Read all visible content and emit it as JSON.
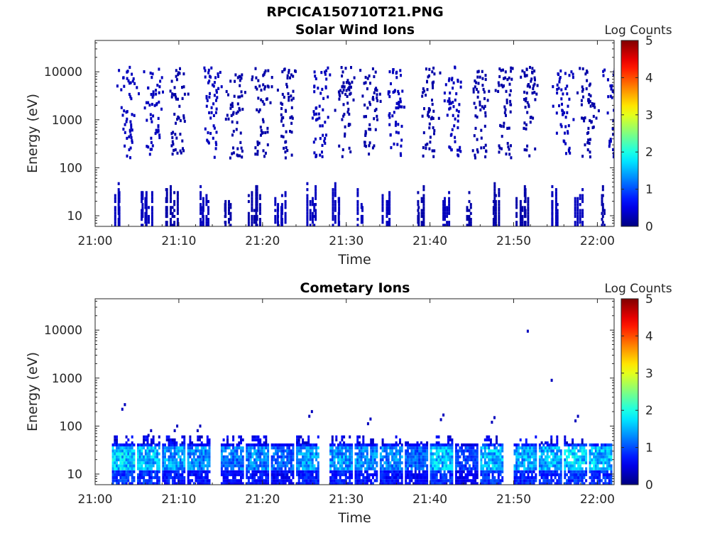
{
  "figure_title": "RPCICA150710T21.PNG",
  "chart_data": [
    {
      "type": "heatmap",
      "title": "Solar Wind Ions",
      "xlabel": "Time",
      "ylabel": "Energy (eV)",
      "x_ticks": [
        "21:00",
        "21:10",
        "21:20",
        "21:30",
        "21:40",
        "21:50",
        "22:00"
      ],
      "xlim": [
        "21:00",
        "22:02"
      ],
      "yscale": "log",
      "y_ticks": [
        "10",
        "100",
        "1000",
        "10000"
      ],
      "ylim": [
        6,
        45000
      ],
      "colorbar": {
        "label": "Log Counts",
        "range": [
          0,
          5
        ],
        "ticks": [
          "0",
          "1",
          "2",
          "3",
          "4",
          "5"
        ],
        "colormap": "jet"
      },
      "bursts": [
        {
          "t": "21:03",
          "low_energy_level": 0.3,
          "high_energy_level": 0.3
        },
        {
          "t": "21:06",
          "low_energy_level": 0.3,
          "high_energy_level": 0.3
        },
        {
          "t": "21:09",
          "low_energy_level": 0.2,
          "high_energy_level": 0.2
        },
        {
          "t": "21:13",
          "low_energy_level": 0.3,
          "high_energy_level": 0.3
        },
        {
          "t": "21:16",
          "low_energy_level": 0.2,
          "high_energy_level": 0.2
        },
        {
          "t": "21:19",
          "low_energy_level": 0.2,
          "high_energy_level": 0.2
        },
        {
          "t": "21:22",
          "low_energy_level": 0.3,
          "high_energy_level": 0.2
        },
        {
          "t": "21:26",
          "low_energy_level": 0.3,
          "high_energy_level": 0.3
        },
        {
          "t": "21:29",
          "low_energy_level": 0.3,
          "high_energy_level": 0.2
        },
        {
          "t": "21:32",
          "low_energy_level": 0.3,
          "high_energy_level": 0.2
        },
        {
          "t": "21:35",
          "low_energy_level": 0.3,
          "high_energy_level": 0.3
        },
        {
          "t": "21:39",
          "low_energy_level": 0.2,
          "high_energy_level": 0.2
        },
        {
          "t": "21:42",
          "low_energy_level": 0.3,
          "high_energy_level": 0.3
        },
        {
          "t": "21:45",
          "low_energy_level": 0.2,
          "high_energy_level": 0.2
        },
        {
          "t": "21:48",
          "low_energy_level": 0.2,
          "high_energy_level": 0.2
        },
        {
          "t": "21:51",
          "low_energy_level": 0.2,
          "high_energy_level": 0.2
        },
        {
          "t": "21:55",
          "low_energy_level": 0.3,
          "high_energy_level": 0.3
        },
        {
          "t": "21:58",
          "low_energy_level": 0.3,
          "high_energy_level": 0.2
        },
        {
          "t": "22:01",
          "low_energy_level": 0.2,
          "high_energy_level": 0.3
        }
      ]
    },
    {
      "type": "heatmap",
      "title": "Cometary Ions",
      "xlabel": "Time",
      "ylabel": "Energy (eV)",
      "x_ticks": [
        "21:00",
        "21:10",
        "21:20",
        "21:30",
        "21:40",
        "21:50",
        "22:00"
      ],
      "xlim": [
        "21:00",
        "22:02"
      ],
      "yscale": "log",
      "y_ticks": [
        "10",
        "100",
        "1000",
        "10000"
      ],
      "ylim": [
        6,
        45000
      ],
      "colorbar": {
        "label": "Log Counts",
        "range": [
          0,
          5
        ],
        "ticks": [
          "0",
          "1",
          "2",
          "3",
          "4",
          "5"
        ],
        "colormap": "jet"
      },
      "bursts": [
        {
          "t": "21:03",
          "peak_log_counts": 1.9,
          "max_energy_eV": 280
        },
        {
          "t": "21:06",
          "peak_log_counts": 1.8,
          "max_energy_eV": 80
        },
        {
          "t": "21:09",
          "peak_log_counts": 1.6,
          "max_energy_eV": 100
        },
        {
          "t": "21:12",
          "peak_log_counts": 1.5,
          "max_energy_eV": 100
        },
        {
          "t": "21:16",
          "peak_log_counts": 1.4,
          "max_energy_eV": 60
        },
        {
          "t": "21:19",
          "peak_log_counts": 1.5,
          "max_energy_eV": 60
        },
        {
          "t": "21:22",
          "peak_log_counts": 1.3,
          "max_energy_eV": 40
        },
        {
          "t": "21:25",
          "peak_log_counts": 1.6,
          "max_energy_eV": 200
        },
        {
          "t": "21:29",
          "peak_log_counts": 1.6,
          "max_energy_eV": 60
        },
        {
          "t": "21:32",
          "peak_log_counts": 1.5,
          "max_energy_eV": 140
        },
        {
          "t": "21:35",
          "peak_log_counts": 1.5,
          "max_energy_eV": 60
        },
        {
          "t": "21:38",
          "peak_log_counts": 1.3,
          "max_energy_eV": 50
        },
        {
          "t": "21:41",
          "peak_log_counts": 1.8,
          "max_energy_eV": 170
        },
        {
          "t": "21:44",
          "peak_log_counts": 1.1,
          "max_energy_eV": 40
        },
        {
          "t": "21:47",
          "peak_log_counts": 1.8,
          "max_energy_eV": 150
        },
        {
          "t": "21:51",
          "peak_log_counts": 1.7,
          "max_energy_eV": 9500
        },
        {
          "t": "21:54",
          "peak_log_counts": 1.7,
          "max_energy_eV": 900
        },
        {
          "t": "21:57",
          "peak_log_counts": 1.9,
          "max_energy_eV": 160
        },
        {
          "t": "22:00",
          "peak_log_counts": 1.8,
          "max_energy_eV": 40
        }
      ]
    }
  ]
}
